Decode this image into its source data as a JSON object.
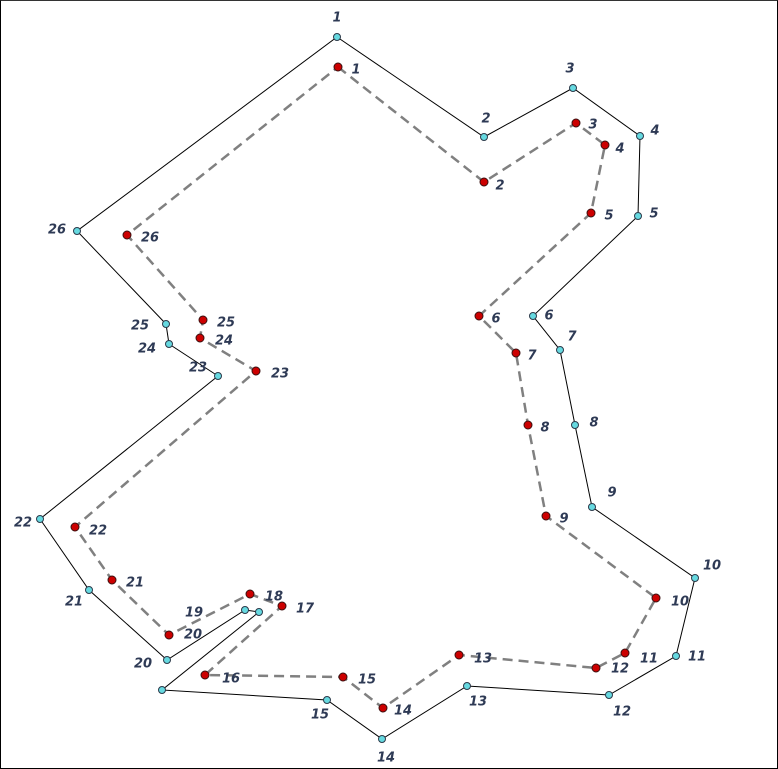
{
  "diagram": {
    "outer_polygon": {
      "stroke": "#000000",
      "marker_fill": "#66d9e0",
      "marker_stroke": "#2b3a4a",
      "vertex_labels": [
        "1",
        "2",
        "3",
        "4",
        "5",
        "6",
        "7",
        "8",
        "9",
        "10",
        "11",
        "12",
        "13",
        "14",
        "15",
        "",
        "",
        "",
        "19",
        "20",
        "21",
        "22",
        "23",
        "24",
        "25",
        "26"
      ]
    },
    "inner_polygon": {
      "stroke": "#808080",
      "marker_fill": "#cc0000",
      "marker_stroke": "#3a1010",
      "vertex_labels": [
        "1",
        "2",
        "3",
        "4",
        "5",
        "6",
        "7",
        "8",
        "9",
        "10",
        "11",
        "12",
        "13",
        "14",
        "15",
        "16",
        "17",
        "18",
        "20",
        "21",
        "22",
        "23",
        "24",
        "25",
        "26"
      ]
    }
  }
}
